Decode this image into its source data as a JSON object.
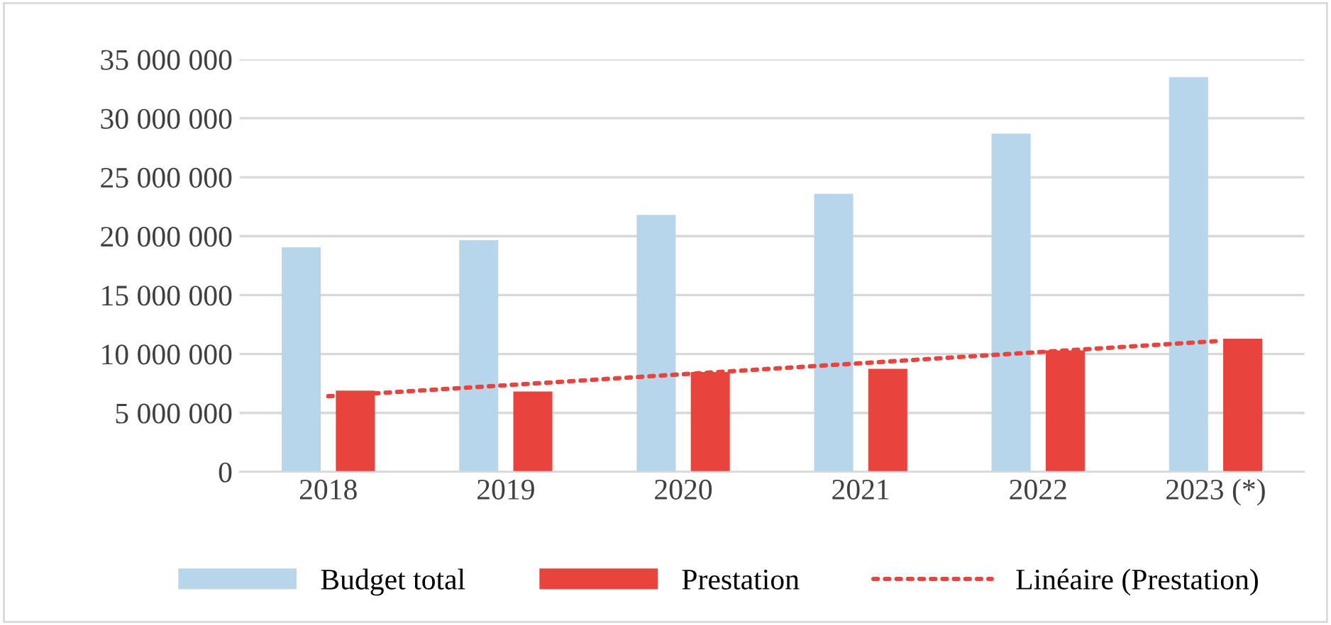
{
  "chart_data": {
    "type": "bar",
    "categories": [
      "2018",
      "2019",
      "2020",
      "2021",
      "2022",
      "2023 (*)"
    ],
    "series": [
      {
        "name": "Budget total",
        "color": "#b8d6eb",
        "values": [
          19060000,
          19660000,
          21800000,
          23600000,
          28700000,
          33500000
        ]
      },
      {
        "name": "Prestation",
        "color": "#e8433d",
        "values": [
          6900000,
          6820000,
          8470000,
          8750000,
          10300000,
          11300000
        ]
      },
      {
        "name": "Linéaire (Prestation)",
        "type": "line",
        "line_style": "dotted",
        "color": "#e8433d",
        "values": [
          6420000,
          7350000,
          8290000,
          9220000,
          10160000,
          11090000
        ]
      }
    ],
    "ylim": [
      0,
      35000000
    ],
    "yticks": [
      {
        "value": 0,
        "label": "0"
      },
      {
        "value": 5000000,
        "label": "5 000 000"
      },
      {
        "value": 10000000,
        "label": "10 000 000"
      },
      {
        "value": 15000000,
        "label": "15 000 000"
      },
      {
        "value": 20000000,
        "label": "20 000 000"
      },
      {
        "value": 25000000,
        "label": "25 000 000"
      },
      {
        "value": 30000000,
        "label": "30 000 000"
      },
      {
        "value": 35000000,
        "label": "35 000 000"
      }
    ],
    "grid": "y",
    "legend": "bottom"
  }
}
